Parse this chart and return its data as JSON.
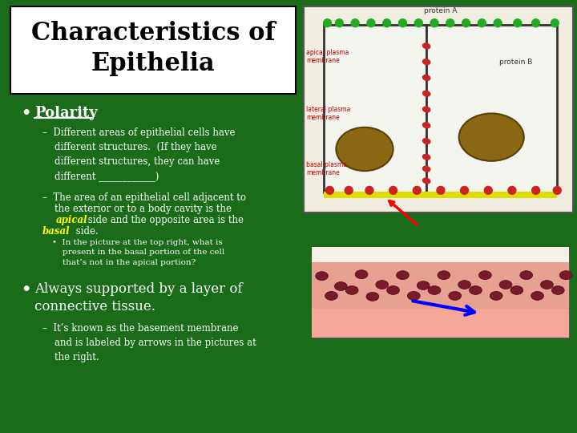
{
  "bg_color": "#1a6b1a",
  "title_box_bg": "#ffffff",
  "title_text": "Characteristics of\nEpithelia",
  "title_color": "#000000",
  "title_fontsize": 22,
  "bullet1_text": "Polarity",
  "bullet1_color": "#ffffff",
  "sub1a_color": "#ffffff",
  "sub1b_apical": "apical",
  "sub1b_basal": "basal",
  "sub1b_highlight": "#ffff00",
  "sub1b_color": "#ffffff",
  "sub2_color": "#ffffff",
  "bullet2_color": "#ffffff",
  "sub3_color": "#ffffff",
  "font_family": "serif"
}
